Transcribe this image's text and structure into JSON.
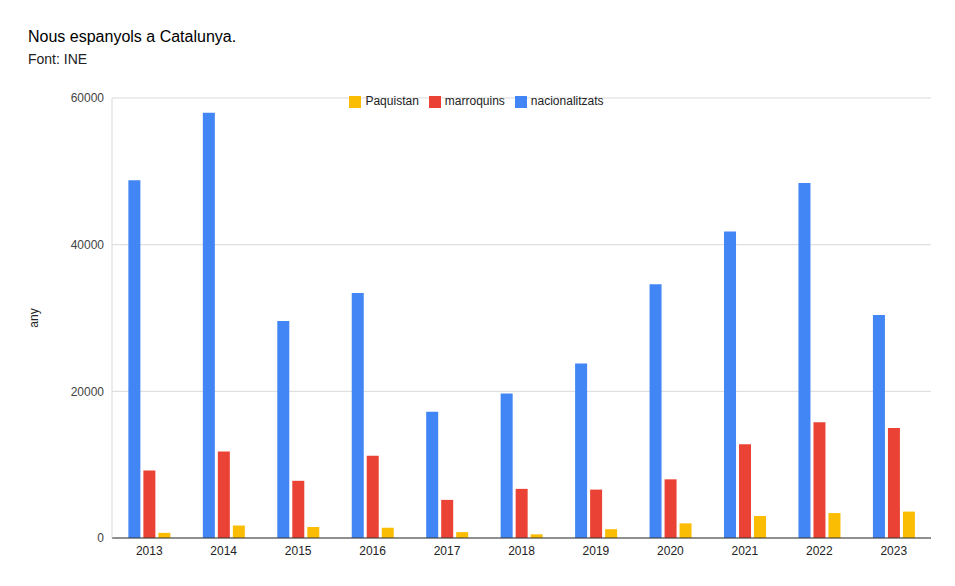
{
  "chart_data": {
    "type": "bar",
    "title": "Nous espanyols a Catalunya.",
    "subtitle": "Font: INE",
    "y_label": "any",
    "categories": [
      "2013",
      "2014",
      "2015",
      "2016",
      "2017",
      "2018",
      "2019",
      "2020",
      "2021",
      "2022",
      "2023"
    ],
    "series": [
      {
        "name": "nacionalitzats",
        "color": "#4285f4",
        "values": [
          48800,
          58000,
          29600,
          33400,
          17200,
          19700,
          23800,
          34600,
          41800,
          48400,
          30400
        ]
      },
      {
        "name": "marroquins",
        "color": "#ea4335",
        "values": [
          9200,
          11800,
          7800,
          11200,
          5200,
          6700,
          6600,
          8000,
          12800,
          15800,
          15000
        ]
      },
      {
        "name": "Paquistan",
        "color": "#fbbc04",
        "values": [
          700,
          1700,
          1500,
          1400,
          800,
          500,
          1200,
          2000,
          3000,
          3400,
          3600
        ]
      }
    ],
    "ylim": [
      0,
      60000
    ],
    "yticks": [
      0,
      20000,
      40000,
      60000
    ],
    "grid": true,
    "legend": "top"
  }
}
